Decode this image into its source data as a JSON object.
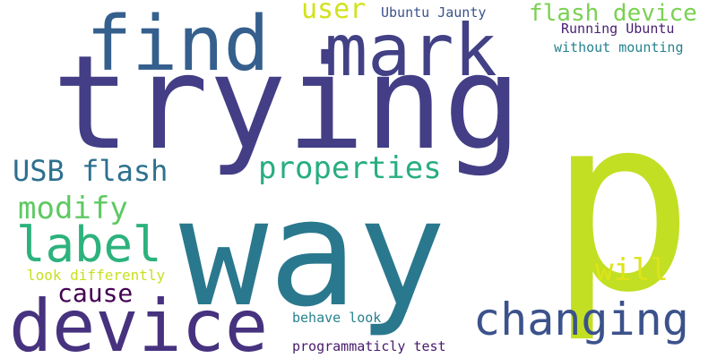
{
  "words": [
    {
      "text": "p",
      "color": "#c2df23"
    },
    {
      "text": "way",
      "color": "#2a788e"
    },
    {
      "text": "trying",
      "color": "#433e85"
    },
    {
      "text": "find",
      "color": "#355f8d"
    },
    {
      "text": "mark",
      "color": "#424186"
    },
    {
      "text": "device",
      "color": "#46327e"
    },
    {
      "text": "changing",
      "color": "#3b528b"
    },
    {
      "text": "label",
      "color": "#2db27d"
    },
    {
      "text": "properties",
      "color": "#28ae80"
    },
    {
      "text": "USB flash",
      "color": "#2d708e"
    },
    {
      "text": "modify",
      "color": "#5ec962"
    },
    {
      "text": "user",
      "color": "#d2e21b"
    },
    {
      "text": "flash device",
      "color": "#7ad151"
    },
    {
      "text": "will",
      "color": "#dde318"
    },
    {
      "text": "cause",
      "color": "#440154"
    },
    {
      "text": "Ubuntu Jaunty",
      "color": "#3b528b"
    },
    {
      "text": "Running Ubuntu",
      "color": "#481f70"
    },
    {
      "text": "without mounting",
      "color": "#25838e"
    },
    {
      "text": "look differently",
      "color": "#c8e020"
    },
    {
      "text": "behave look",
      "color": "#26828e"
    },
    {
      "text": "programmaticly test",
      "color": "#481a6c"
    }
  ]
}
